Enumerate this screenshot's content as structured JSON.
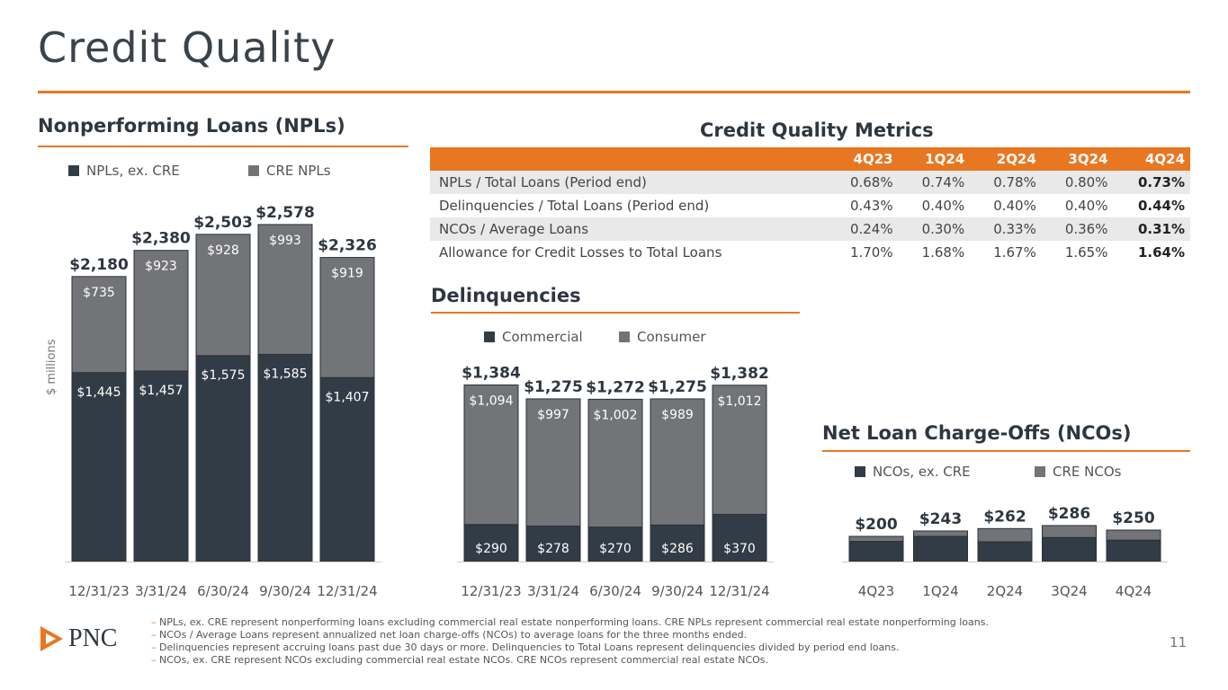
{
  "title": "Credit Quality",
  "page_number": "11",
  "logo": "PNC",
  "footnotes": [
    "NPLs, ex. CRE represent nonperforming loans excluding commercial real estate nonperforming loans. CRE NPLs represent commercial real estate nonperforming loans.",
    "NCOs / Average Loans represent annualized net loan charge-offs (NCOs) to average loans for the three months ended.",
    "Delinquencies represent accruing loans past due 30 days or more. Delinquencies to Total Loans represent delinquencies divided by period end loans.",
    "NCOs, ex. CRE represent NCOs excluding commercial real estate NCOs. CRE NCOs represent commercial real estate NCOs."
  ],
  "metrics": {
    "title": "Credit Quality Metrics",
    "columns": [
      "4Q23",
      "1Q24",
      "2Q24",
      "3Q24",
      "4Q24"
    ],
    "rows": [
      {
        "label": "NPLs / Total Loans (Period end)",
        "values": [
          "0.68%",
          "0.74%",
          "0.78%",
          "0.80%",
          "0.73%"
        ]
      },
      {
        "label": "Delinquencies / Total Loans (Period end)",
        "values": [
          "0.43%",
          "0.40%",
          "0.40%",
          "0.40%",
          "0.44%"
        ]
      },
      {
        "label": "NCOs / Average Loans",
        "values": [
          "0.24%",
          "0.30%",
          "0.33%",
          "0.36%",
          "0.31%"
        ]
      },
      {
        "label": "Allowance for Credit Losses to Total Loans",
        "values": [
          "1.70%",
          "1.68%",
          "1.67%",
          "1.65%",
          "1.64%"
        ]
      }
    ]
  },
  "colors": {
    "dark": "#323c46",
    "gray": "#737478",
    "accent": "#e87722"
  },
  "chart_data": [
    {
      "type": "bar",
      "stacked": true,
      "title": "Nonperforming Loans (NPLs)",
      "ylabel": "$ millions",
      "categories": [
        "12/31/23",
        "3/31/24",
        "6/30/24",
        "9/30/24",
        "12/31/24"
      ],
      "series": [
        {
          "name": "NPLs, ex. CRE",
          "values": [
            1445,
            1457,
            1575,
            1585,
            1407
          ],
          "labels": [
            "$1,445",
            "$1,457",
            "$1,575",
            "$1,585",
            "$1,407"
          ]
        },
        {
          "name": "CRE NPLs",
          "values": [
            735,
            923,
            928,
            993,
            919
          ],
          "labels": [
            "$735",
            "$923",
            "$928",
            "$993",
            "$919"
          ]
        }
      ],
      "totals": [
        "$2,180",
        "$2,380",
        "$2,503",
        "$2,578",
        "$2,326"
      ]
    },
    {
      "type": "bar",
      "stacked": true,
      "title": "Delinquencies",
      "categories": [
        "12/31/23",
        "3/31/24",
        "6/30/24",
        "9/30/24",
        "12/31/24"
      ],
      "series": [
        {
          "name": "Commercial",
          "values": [
            290,
            278,
            270,
            286,
            370
          ],
          "labels": [
            "$290",
            "$278",
            "$270",
            "$286",
            "$370"
          ]
        },
        {
          "name": "Consumer",
          "values": [
            1094,
            997,
            1002,
            989,
            1012
          ],
          "labels": [
            "$1,094",
            "$997",
            "$1,002",
            "$989",
            "$1,012"
          ]
        }
      ],
      "totals": [
        "$1,384",
        "$1,275",
        "$1,272",
        "$1,275",
        "$1,382"
      ]
    },
    {
      "type": "bar",
      "stacked": true,
      "title": "Net Loan Charge-Offs (NCOs)",
      "categories": [
        "4Q23",
        "1Q24",
        "2Q24",
        "3Q24",
        "4Q24"
      ],
      "series": [
        {
          "name": "NCOs, ex. CRE",
          "values": [
            160,
            200,
            157,
            191,
            170
          ]
        },
        {
          "name": "CRE NCOs",
          "values": [
            40,
            43,
            105,
            95,
            80
          ]
        }
      ],
      "totals": [
        "$200",
        "$243",
        "$262",
        "$286",
        "$250"
      ]
    }
  ]
}
